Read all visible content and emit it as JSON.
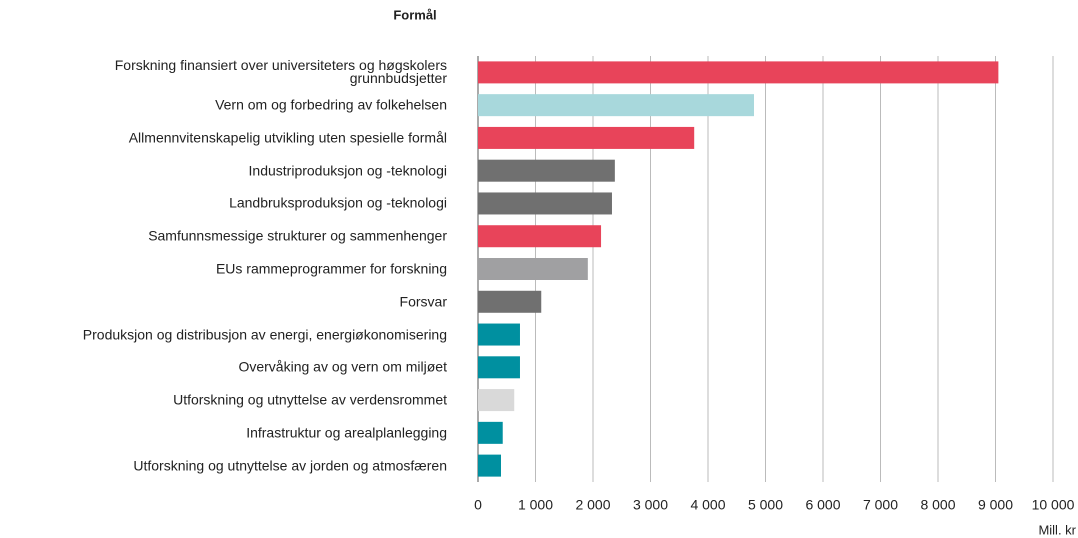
{
  "chart_data": {
    "type": "bar",
    "orientation": "horizontal",
    "title": "Formål",
    "x_label": "Mill. kr",
    "categories": [
      "Forskning finansiert over universiteters og høgskolers\ngrunnbudsjetter",
      "Vern om og forbedring av folkehelsen",
      "Allmennvitenskapelig utvikling uten spesielle formål",
      "Industriproduksjon og -teknologi",
      "Landbruksproduksjon og -teknologi",
      "Samfunnsmessige strukturer og sammenhenger",
      "EUs rammeprogrammer for forskning",
      "Forsvar",
      "Produksjon og distribusjon av energi, energiøkonomisering",
      "Overvåking av og vern om miljøet",
      "Utforskning og utnyttelse av verdensrommet",
      "Infrastruktur og arealplanlegging",
      "Utforskning og utnyttelse av jorden og atmosfæren"
    ],
    "values": [
      9050,
      4800,
      3760,
      2380,
      2330,
      2140,
      1910,
      1100,
      730,
      730,
      630,
      430,
      400
    ],
    "colors": [
      "#e8445a",
      "#a8d8dc",
      "#e8445a",
      "#707070",
      "#707070",
      "#e8445a",
      "#a0a0a2",
      "#707070",
      "#0090a0",
      "#0090a0",
      "#d9d9d9",
      "#0090a0",
      "#0090a0"
    ],
    "xlim": [
      0,
      10000
    ],
    "xticks": [
      0,
      {
        "value": 1000,
        "label": "1 000"
      },
      {
        "value": 2000,
        "label": "2 000"
      },
      {
        "value": 3000,
        "label": "3 000"
      },
      {
        "value": 4000,
        "label": "4 000"
      },
      {
        "value": 5000,
        "label": "5 000"
      },
      {
        "value": 6000,
        "label": "6 000"
      },
      {
        "value": 7000,
        "label": "7 000"
      },
      {
        "value": 8000,
        "label": "8 000"
      },
      {
        "value": 9000,
        "label": "9 000"
      },
      {
        "value": 10000,
        "label": "10 000"
      }
    ],
    "grid": true
  }
}
